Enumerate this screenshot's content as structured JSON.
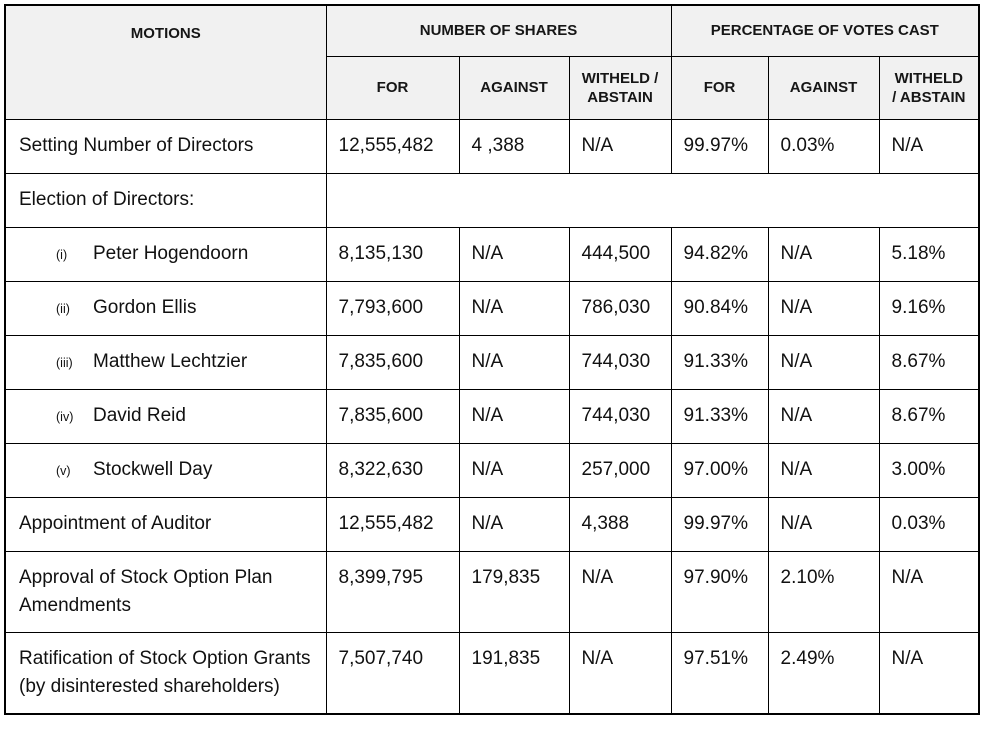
{
  "colors": {
    "header_bg": "#f1f1f1",
    "border": "#000000",
    "text": "#111111"
  },
  "table": {
    "columns": {
      "motions": "MOTIONS",
      "shares_group": "NUMBER OF SHARES",
      "percent_group": "PERCENTAGE OF VOTES CAST",
      "sub": [
        "FOR",
        "AGAINST",
        "WITHELD /\nABSTAIN",
        "FOR",
        "AGAINST",
        "WITHELD\n/ ABSTAIN"
      ]
    },
    "rows": [
      {
        "type": "motion",
        "label": "Setting Number of Directors",
        "cells": [
          "12,555,482",
          "4 ,388",
          "N/A",
          "99.97%",
          "0.03%",
          "N/A"
        ]
      },
      {
        "type": "section",
        "label": "Election of Directors:"
      },
      {
        "type": "director",
        "numeral": "(i)",
        "label": "Peter Hogendoorn",
        "cells": [
          "8,135,130",
          "N/A",
          "444,500",
          "94.82%",
          "N/A",
          "5.18%"
        ]
      },
      {
        "type": "director",
        "numeral": "(ii)",
        "label": "Gordon Ellis",
        "cells": [
          "7,793,600",
          "N/A",
          "786,030",
          "90.84%",
          "N/A",
          "9.16%"
        ]
      },
      {
        "type": "director",
        "numeral": "(iii)",
        "label": "Matthew Lechtzier",
        "cells": [
          "7,835,600",
          "N/A",
          "744,030",
          "91.33%",
          "N/A",
          "8.67%"
        ]
      },
      {
        "type": "director",
        "numeral": "(iv)",
        "label": "David Reid",
        "cells": [
          "7,835,600",
          "N/A",
          "744,030",
          "91.33%",
          "N/A",
          "8.67%"
        ]
      },
      {
        "type": "director",
        "numeral": "(v)",
        "label": "Stockwell Day",
        "cells": [
          "8,322,630",
          "N/A",
          "257,000",
          "97.00%",
          "N/A",
          "3.00%"
        ]
      },
      {
        "type": "motion",
        "label": "Appointment of Auditor",
        "cells": [
          "12,555,482",
          "N/A",
          "4,388",
          "99.97%",
          "N/A",
          "0.03%"
        ]
      },
      {
        "type": "motion",
        "label": "Approval of Stock Option Plan Amendments",
        "cells": [
          "8,399,795",
          "179,835",
          "N/A",
          "97.90%",
          "2.10%",
          "N/A"
        ]
      },
      {
        "type": "motion",
        "label": "Ratification of Stock Option Grants (by disinterested shareholders)",
        "cells": [
          "7,507,740",
          "191,835",
          "N/A",
          "97.51%",
          "2.49%",
          "N/A"
        ]
      }
    ]
  }
}
